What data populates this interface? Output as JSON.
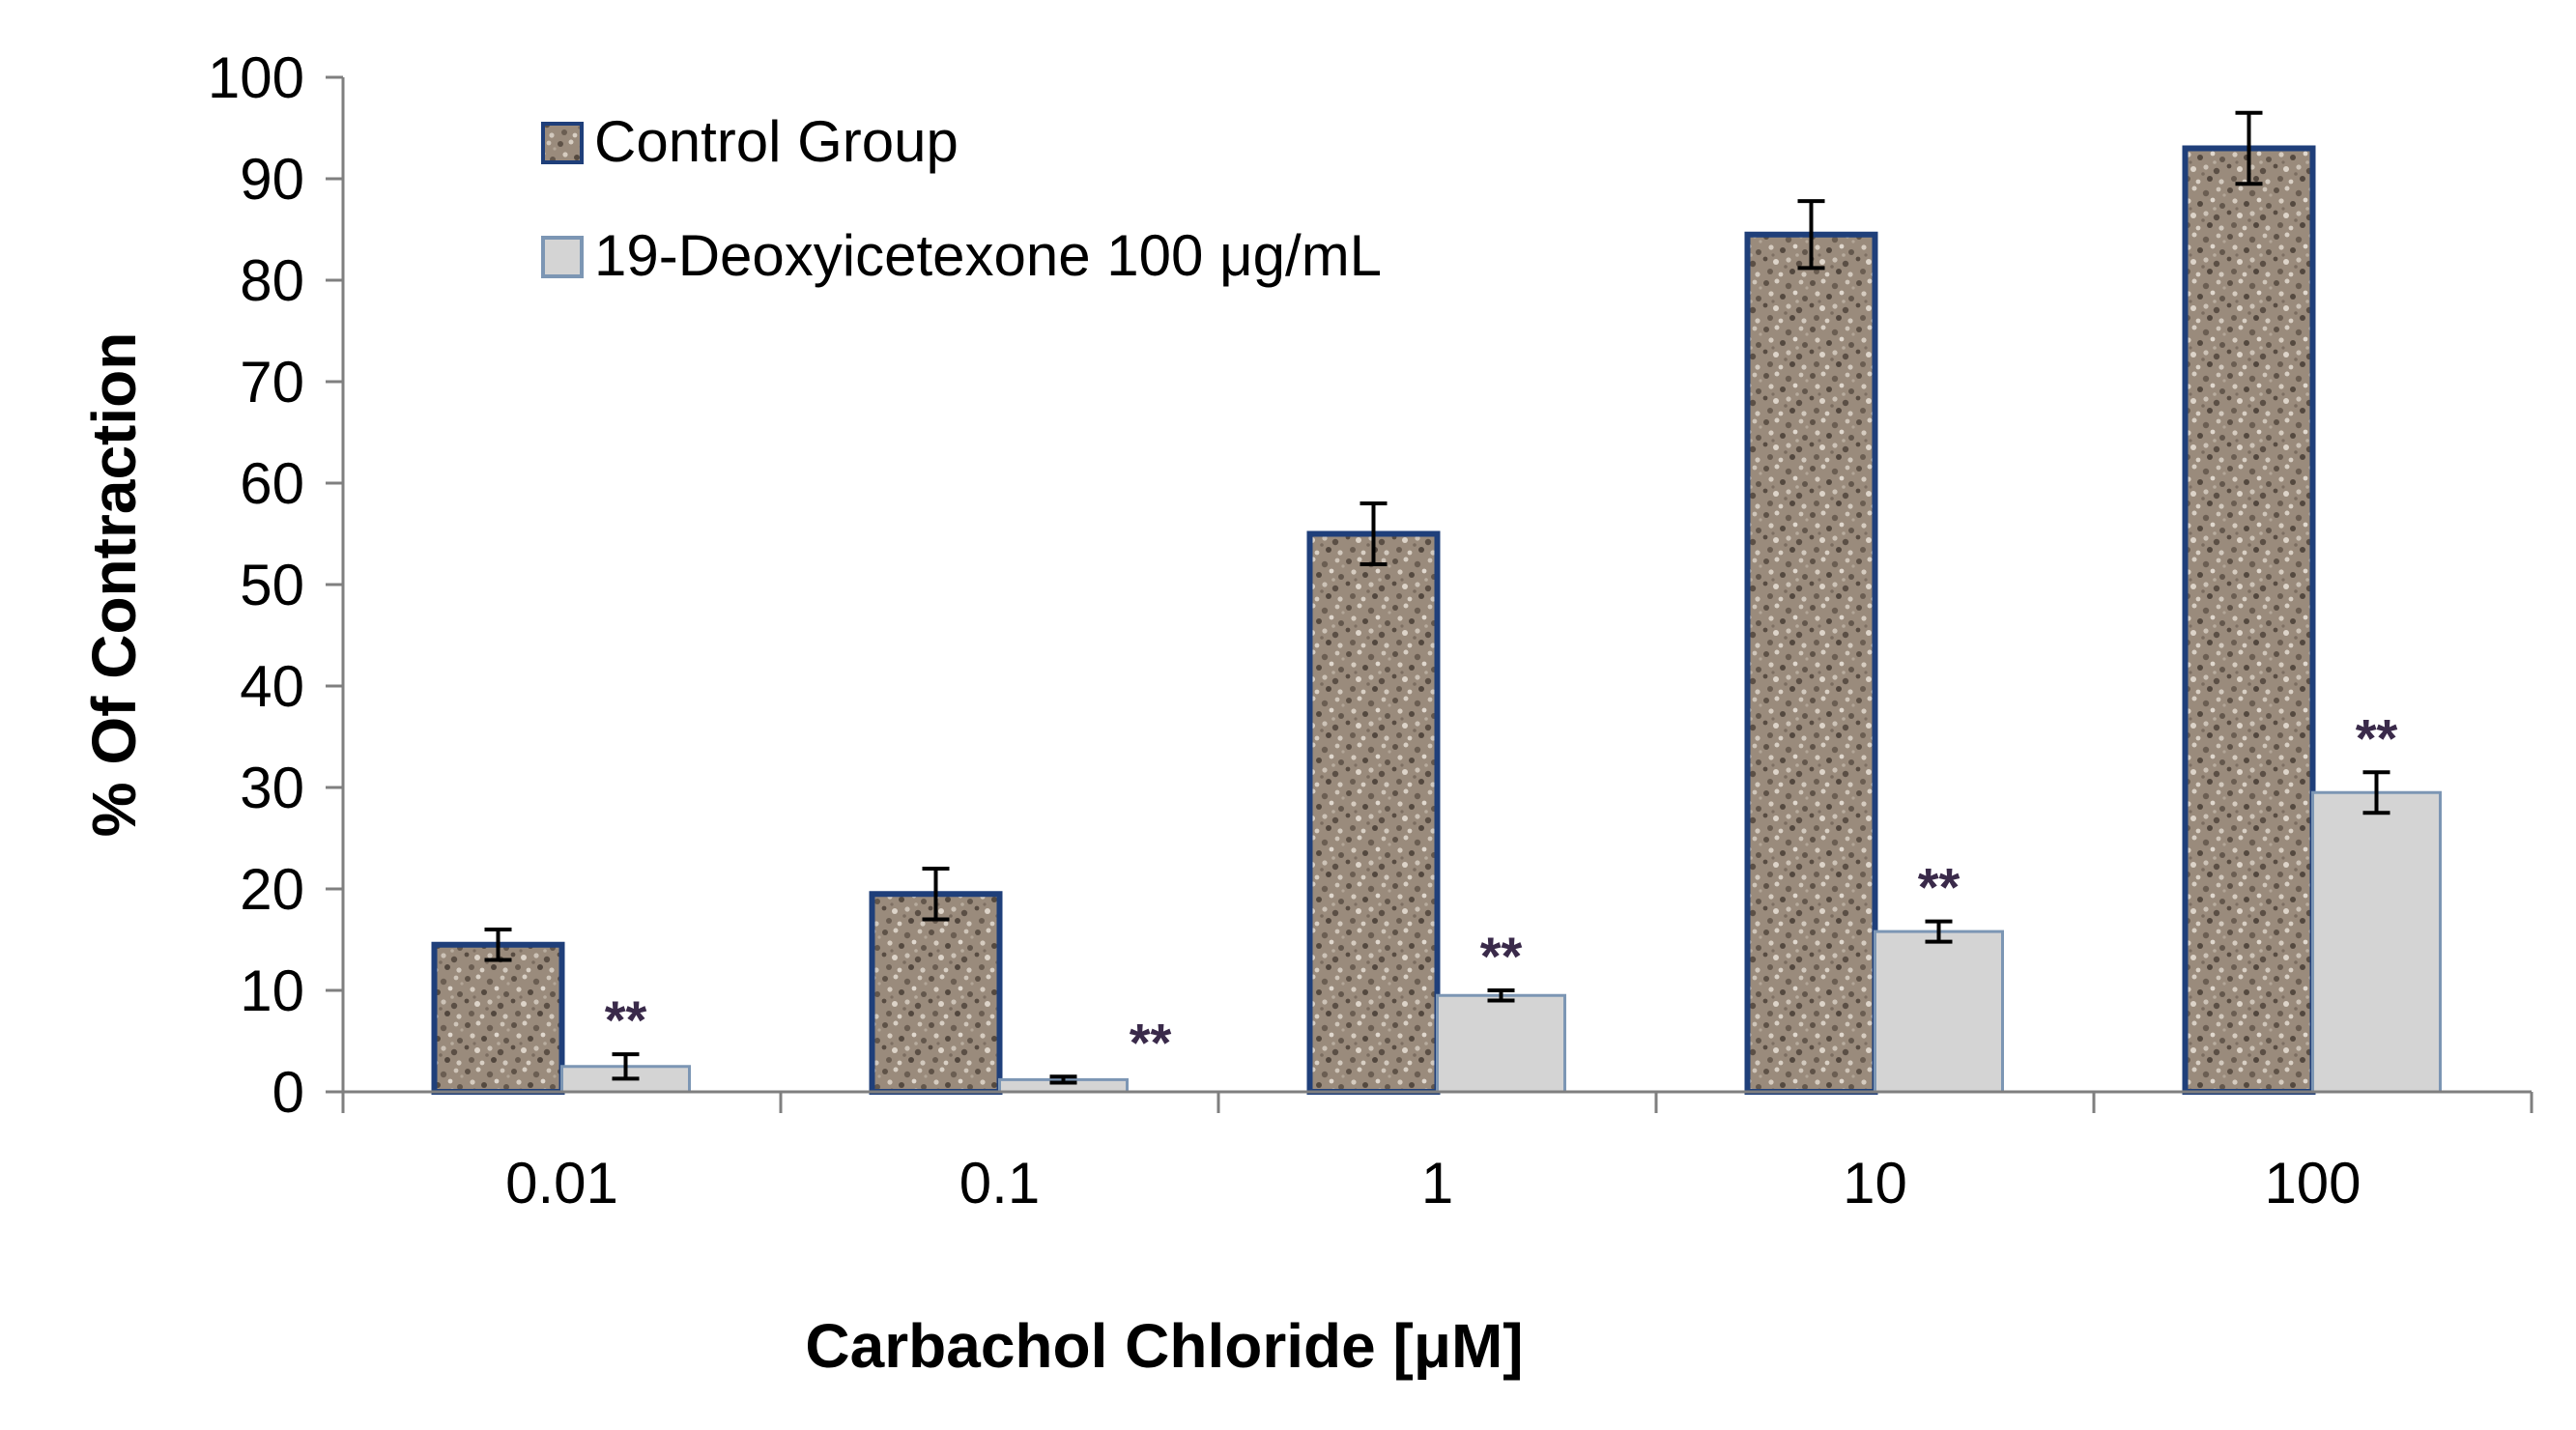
{
  "chart_data": {
    "type": "bar",
    "title": "",
    "xlabel": "Carbachol Chloride [μM]",
    "ylabel": "% Of Contraction",
    "categories": [
      "0.01",
      "0.1",
      "1",
      "10",
      "100"
    ],
    "ylim": [
      0,
      100
    ],
    "yticks": [
      "0",
      "10",
      "20",
      "30",
      "40",
      "50",
      "60",
      "70",
      "80",
      "90",
      "100"
    ],
    "grid": false,
    "legend_position": "top-left",
    "series": [
      {
        "name": "Control Group",
        "values": [
          14.5,
          19.5,
          55,
          84.5,
          93
        ],
        "errors": [
          1.5,
          2.5,
          3,
          3.3,
          3.5
        ],
        "fill_color": "#9a8b7c",
        "border_color": "#1f3f7a",
        "pattern": "granite"
      },
      {
        "name": "19-Deoxyicetexone 100 μg/mL",
        "values": [
          2.5,
          1.2,
          9.5,
          15.8,
          29.5
        ],
        "errors": [
          1.2,
          0.3,
          0.5,
          1.0,
          2.0
        ],
        "fill_color": "#d4d4d4",
        "border_color": "#7c96b4",
        "significance": [
          "**",
          "**",
          "**",
          "**",
          "**"
        ]
      }
    ]
  }
}
